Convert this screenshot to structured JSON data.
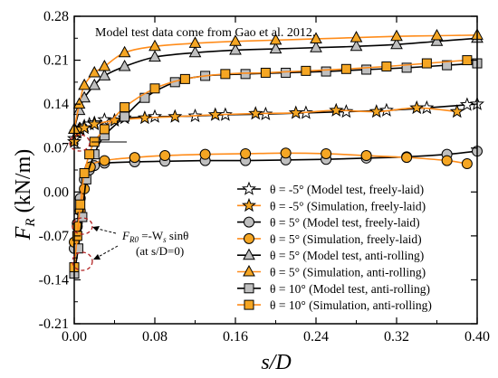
{
  "chart_data": {
    "type": "line",
    "xlabel": "s/D",
    "ylabel": "F_R (kN/m)",
    "xlim": [
      0.0,
      0.4
    ],
    "ylim": [
      -0.21,
      0.28
    ],
    "xticks": [
      "0.00",
      "0.08",
      "0.16",
      "0.24",
      "0.32",
      "0.40"
    ],
    "yticks": [
      "-0.21",
      "-0.14",
      "-0.07",
      "0.00",
      "0.07",
      "0.14",
      "0.21",
      "0.28"
    ],
    "note": "Model test data come from Gao et al. 2012.",
    "annotation": {
      "line1_main": "F",
      "line1_sub": "R0",
      "line1_rest": " =-W",
      "line1_sub2": "s",
      "line1_end": " sinθ",
      "line2": "(at s/D=0)"
    },
    "legend_position": "bottom-right",
    "series": [
      {
        "name": "θ = -5° (Model test, freely-laid)",
        "marker": "star",
        "fill": "#ffffff",
        "line": "#000000",
        "x": [
          0.0,
          0.002,
          0.005,
          0.01,
          0.015,
          0.02,
          0.03,
          0.05,
          0.08,
          0.12,
          0.15,
          0.19,
          0.23,
          0.27,
          0.31,
          0.35,
          0.39,
          0.4
        ],
        "y": [
          0.085,
          0.095,
          0.1,
          0.105,
          0.108,
          0.11,
          0.115,
          0.118,
          0.12,
          0.121,
          0.123,
          0.124,
          0.126,
          0.128,
          0.13,
          0.134,
          0.139,
          0.14
        ]
      },
      {
        "name": "θ = -5° (Simulation, freely-laid)",
        "marker": "star",
        "fill": "#f5a623",
        "line": "#ff8c1a",
        "x": [
          0.0,
          0.003,
          0.006,
          0.01,
          0.02,
          0.04,
          0.07,
          0.1,
          0.14,
          0.18,
          0.22,
          0.26,
          0.3,
          0.34,
          0.38
        ],
        "y": [
          0.08,
          0.095,
          0.1,
          0.102,
          0.108,
          0.114,
          0.118,
          0.12,
          0.123,
          0.125,
          0.126,
          0.13,
          0.128,
          0.134,
          0.128
        ]
      },
      {
        "name": "θ = 5° (Model test, freely-laid)",
        "marker": "circle",
        "fill": "#bfbfbf",
        "line": "#000000",
        "x": [
          0.0,
          0.003,
          0.006,
          0.01,
          0.015,
          0.02,
          0.03,
          0.06,
          0.09,
          0.13,
          0.17,
          0.21,
          0.25,
          0.29,
          0.33,
          0.37,
          0.4
        ],
        "y": [
          -0.09,
          -0.05,
          -0.01,
          0.02,
          0.035,
          0.042,
          0.046,
          0.048,
          0.049,
          0.05,
          0.05,
          0.051,
          0.052,
          0.054,
          0.056,
          0.06,
          0.065
        ]
      },
      {
        "name": "θ = 5° (Simulation, freely-laid)",
        "marker": "circle",
        "fill": "#f5a623",
        "line": "#ff8c1a",
        "x": [
          0.0,
          0.003,
          0.006,
          0.01,
          0.016,
          0.03,
          0.06,
          0.09,
          0.13,
          0.17,
          0.21,
          0.25,
          0.29,
          0.33,
          0.37,
          0.39
        ],
        "y": [
          -0.08,
          -0.055,
          -0.03,
          0.005,
          0.04,
          0.05,
          0.055,
          0.058,
          0.06,
          0.061,
          0.062,
          0.061,
          0.058,
          0.055,
          0.05,
          0.045
        ]
      },
      {
        "name": "θ = 5° (Model test, anti-rolling)",
        "marker": "triangle",
        "fill": "#bfbfbf",
        "line": "#000000",
        "x": [
          0.0,
          0.005,
          0.01,
          0.02,
          0.03,
          0.05,
          0.08,
          0.12,
          0.16,
          0.2,
          0.24,
          0.28,
          0.32,
          0.36,
          0.4
        ],
        "y": [
          0.1,
          0.13,
          0.15,
          0.17,
          0.185,
          0.2,
          0.215,
          0.222,
          0.226,
          0.228,
          0.23,
          0.232,
          0.235,
          0.24,
          0.245
        ]
      },
      {
        "name": "θ = 5° (Simulation, anti-rolling)",
        "marker": "triangle",
        "fill": "#f5a623",
        "line": "#ff8c1a",
        "x": [
          0.0,
          0.005,
          0.01,
          0.02,
          0.03,
          0.05,
          0.08,
          0.12,
          0.16,
          0.2,
          0.24,
          0.28,
          0.32,
          0.36,
          0.4
        ],
        "y": [
          0.1,
          0.14,
          0.17,
          0.19,
          0.2,
          0.222,
          0.232,
          0.237,
          0.24,
          0.242,
          0.244,
          0.246,
          0.248,
          0.249,
          0.25
        ]
      },
      {
        "name": "θ = 10° (Model test, anti-rolling)",
        "marker": "square",
        "fill": "#bfbfbf",
        "line": "#000000",
        "x": [
          0.0,
          0.004,
          0.008,
          0.012,
          0.02,
          0.03,
          0.05,
          0.07,
          0.1,
          0.13,
          0.17,
          0.21,
          0.25,
          0.29,
          0.33,
          0.37,
          0.4
        ],
        "y": [
          -0.13,
          -0.09,
          -0.04,
          0.02,
          0.06,
          0.09,
          0.12,
          0.15,
          0.175,
          0.185,
          0.188,
          0.19,
          0.192,
          0.195,
          0.198,
          0.202,
          0.205
        ]
      },
      {
        "name": "θ = 10° (Simulation, anti-rolling)",
        "marker": "square",
        "fill": "#f5a623",
        "line": "#ff8c1a",
        "x": [
          0.0,
          0.003,
          0.006,
          0.01,
          0.015,
          0.02,
          0.03,
          0.05,
          0.08,
          0.11,
          0.15,
          0.19,
          0.23,
          0.27,
          0.31,
          0.35,
          0.39
        ],
        "y": [
          -0.12,
          -0.07,
          -0.02,
          0.03,
          0.06,
          0.08,
          0.1,
          0.135,
          0.165,
          0.18,
          0.188,
          0.19,
          0.193,
          0.196,
          0.2,
          0.205,
          0.21
        ]
      }
    ]
  }
}
